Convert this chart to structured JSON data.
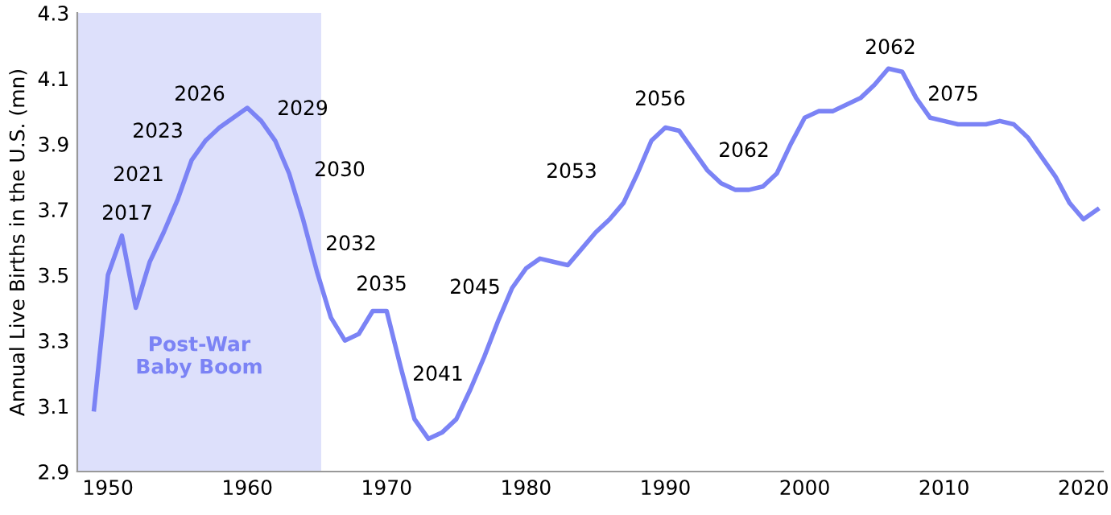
{
  "chart_data": {
    "type": "line",
    "ylabel": "Annual Live Births in the U.S. (mn)",
    "x": [
      1949,
      1950,
      1951,
      1952,
      1953,
      1954,
      1955,
      1956,
      1957,
      1958,
      1959,
      1960,
      1961,
      1962,
      1963,
      1964,
      1965,
      1966,
      1967,
      1968,
      1969,
      1970,
      1971,
      1972,
      1973,
      1974,
      1975,
      1976,
      1977,
      1978,
      1979,
      1980,
      1981,
      1982,
      1983,
      1984,
      1985,
      1986,
      1987,
      1988,
      1989,
      1990,
      1991,
      1992,
      1993,
      1994,
      1995,
      1996,
      1997,
      1998,
      1999,
      2000,
      2001,
      2002,
      2003,
      2004,
      2005,
      2006,
      2007,
      2008,
      2009,
      2010,
      2011,
      2012,
      2013,
      2014,
      2015,
      2016,
      2017,
      2018,
      2019,
      2020,
      2021
    ],
    "series": [
      {
        "color": "#7b83f5",
        "values": [
          3.09,
          3.5,
          3.62,
          3.4,
          3.54,
          3.63,
          3.73,
          3.85,
          3.91,
          3.95,
          3.98,
          4.01,
          3.97,
          3.91,
          3.81,
          3.67,
          3.51,
          3.37,
          3.3,
          3.32,
          3.39,
          3.39,
          3.22,
          3.06,
          3.0,
          3.02,
          3.06,
          3.15,
          3.25,
          3.36,
          3.46,
          3.52,
          3.55,
          3.54,
          3.53,
          3.58,
          3.63,
          3.67,
          3.72,
          3.81,
          3.91,
          3.95,
          3.94,
          3.88,
          3.82,
          3.78,
          3.76,
          3.76,
          3.77,
          3.81,
          3.9,
          3.98,
          4.0,
          4.0,
          4.02,
          4.04,
          4.08,
          4.13,
          4.12,
          4.04,
          3.98,
          3.97,
          3.96,
          3.96,
          3.96,
          3.97,
          3.96,
          3.92,
          3.86,
          3.8,
          3.72,
          3.67,
          3.7
        ]
      }
    ],
    "xlim": [
      1947.8,
      2021.4
    ],
    "ylim": [
      2.9,
      4.3
    ],
    "xticks": [
      1950,
      1960,
      1970,
      1980,
      1990,
      2000,
      2010,
      2020
    ],
    "yticks": [
      2.9,
      3.1,
      3.3,
      3.5,
      3.7,
      3.9,
      4.1,
      4.3
    ],
    "bands": [
      {
        "axis": "x",
        "from": 1947.8,
        "to": 1965.3,
        "label": "Post-War\nBaby Boom",
        "color": "#dde0fb"
      }
    ],
    "annotations": [
      "2017",
      "2021",
      "2023",
      "2026",
      "2029",
      "2030",
      "2032",
      "2035",
      "2041",
      "2045",
      "2053",
      "2056",
      "2062",
      "2062",
      "2075"
    ],
    "grid": false,
    "legend": false
  }
}
